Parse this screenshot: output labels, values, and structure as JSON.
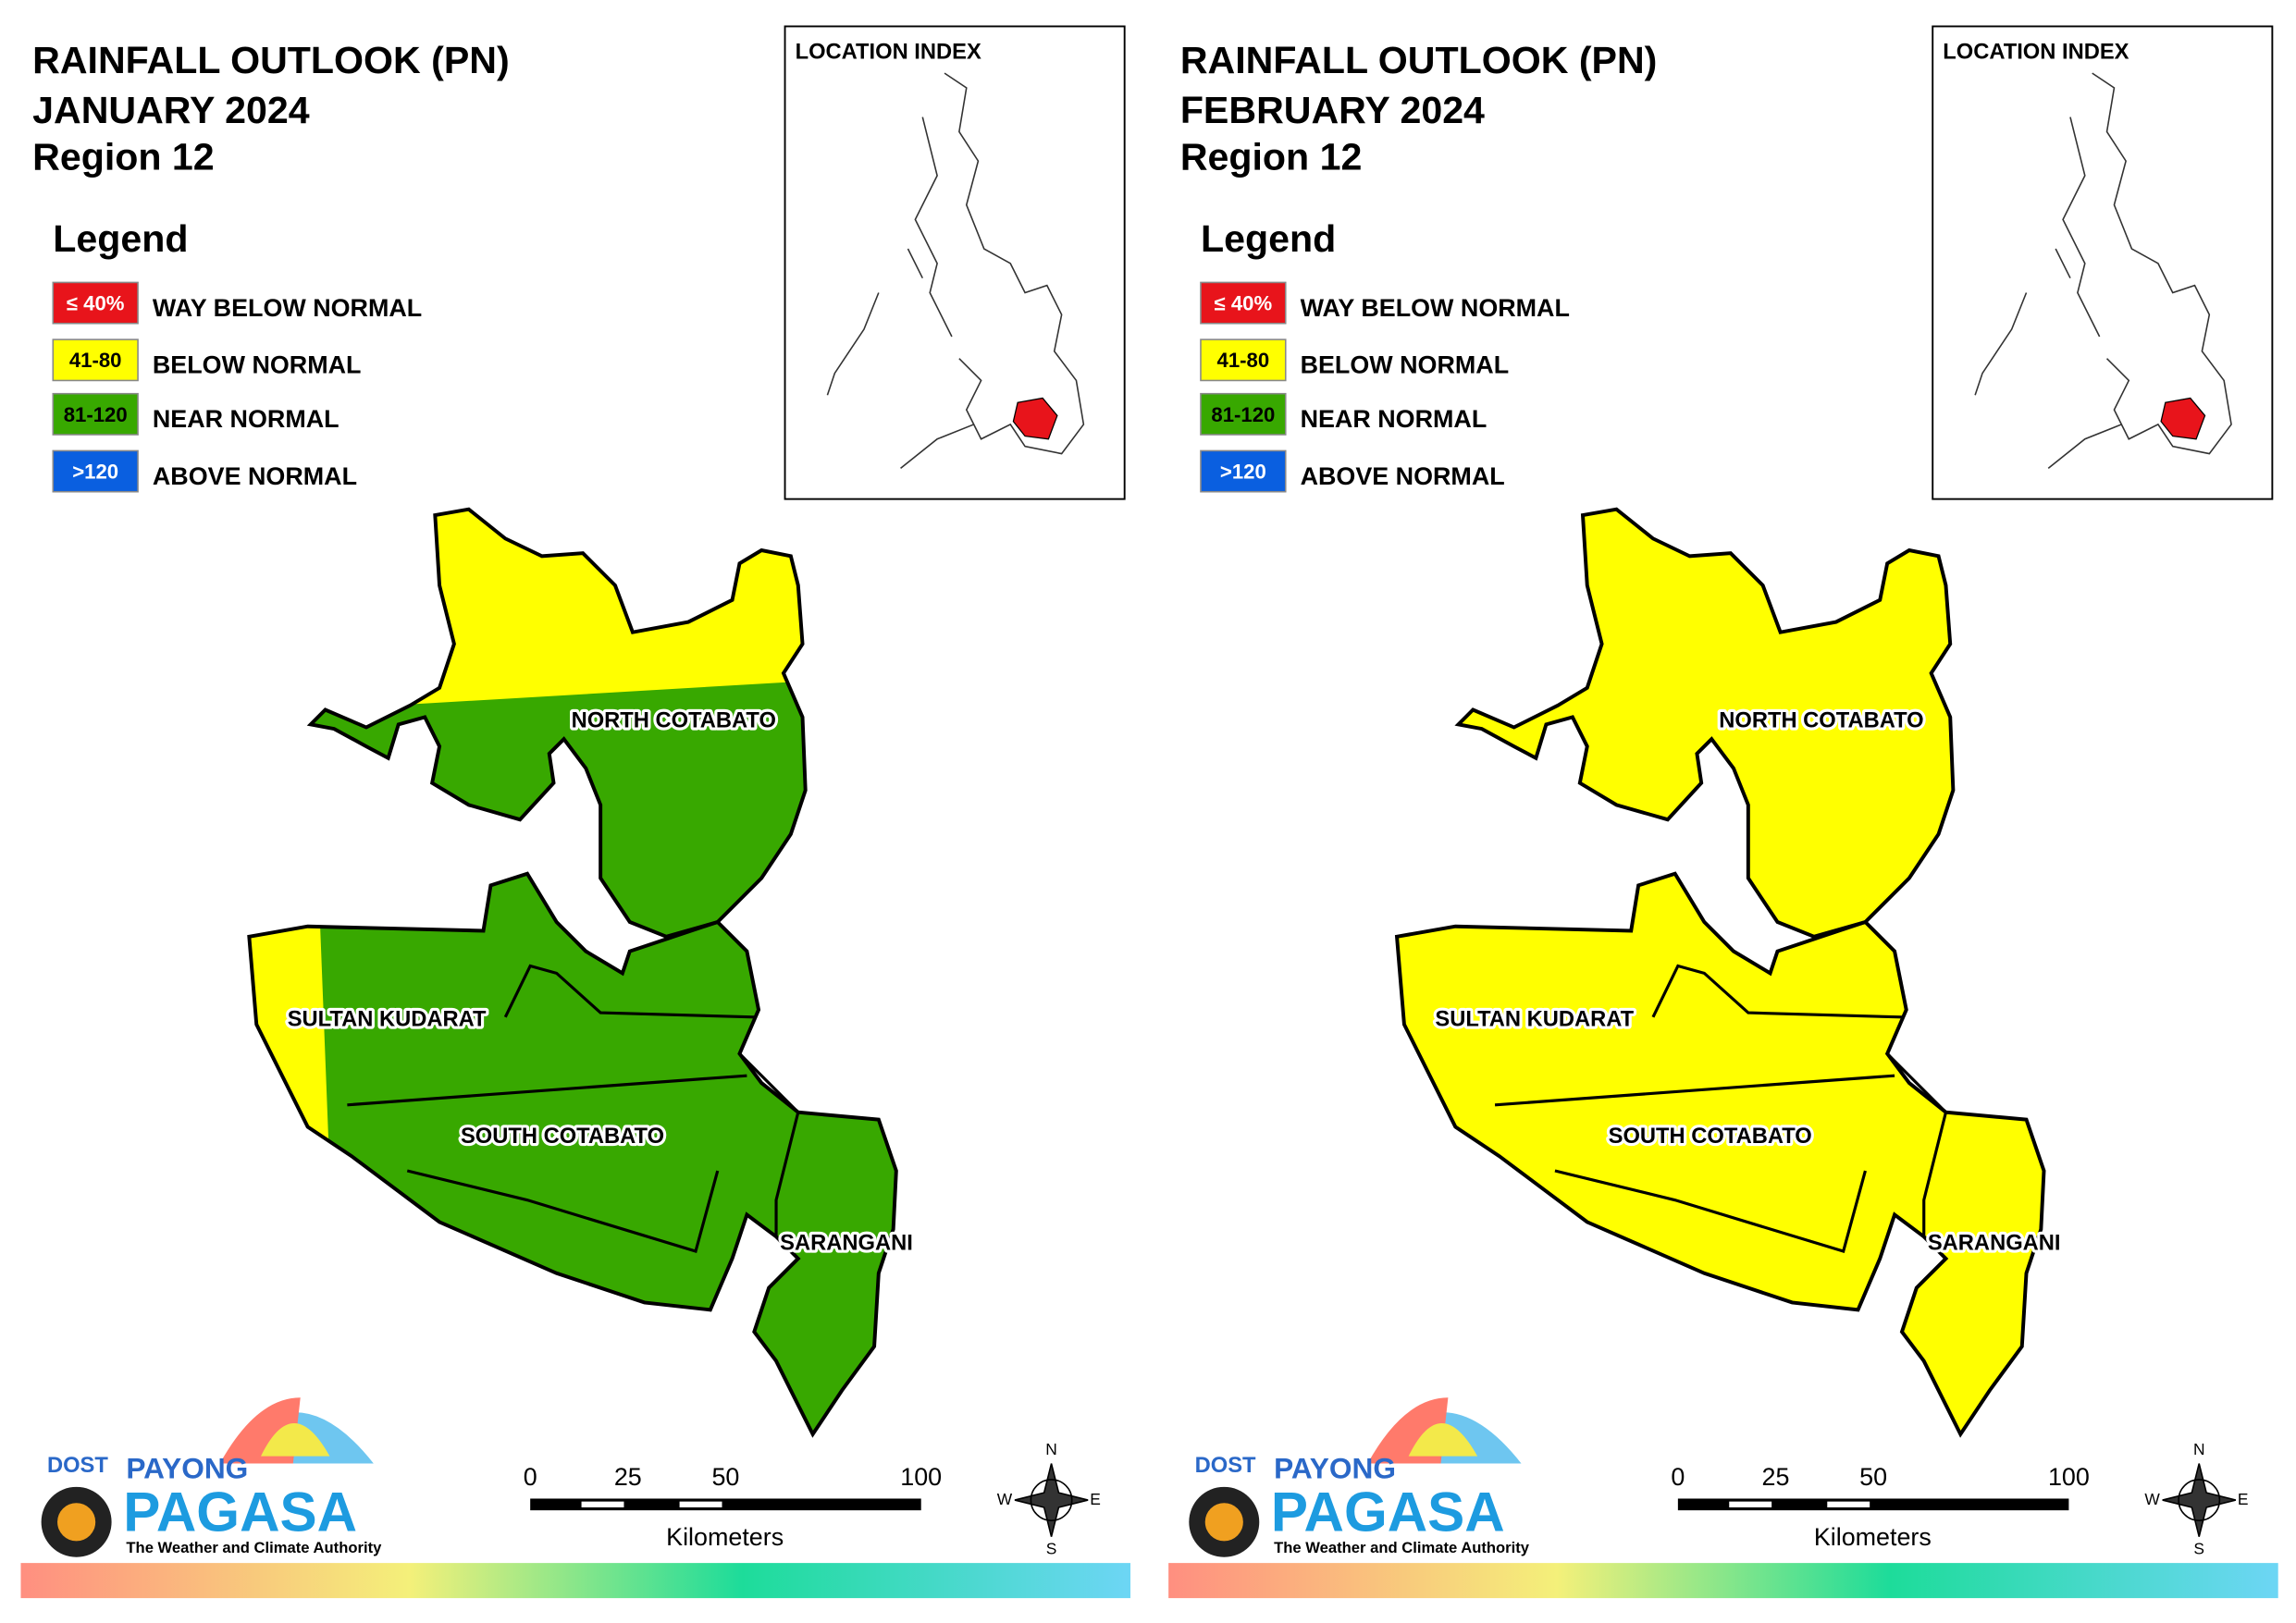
{
  "panels": [
    {
      "title": [
        "RAINFALL OUTLOOK (PN)",
        "JANUARY 2024",
        "Region 12"
      ],
      "legend_title": "Legend",
      "legend": [
        {
          "swatch": "≤ 40%",
          "label": "WAY BELOW NORMAL",
          "color": "#e8141b"
        },
        {
          "swatch": "41-80",
          "label": "BELOW NORMAL",
          "color": "#ffff00"
        },
        {
          "swatch": "81-120",
          "label": "NEAR NORMAL",
          "color": "#38a800"
        },
        {
          "swatch": ">120",
          "label": "ABOVE NORMAL",
          "color": "#0a5fe0"
        }
      ],
      "location_index": "LOCATION INDEX",
      "provinces": [
        "NORTH COTABATO",
        "SULTAN KUDARAT",
        "SOUTH COTABATO",
        "SARANGANI"
      ],
      "scale": {
        "ticks": [
          0,
          25,
          50,
          100
        ],
        "unit": "Kilometers"
      },
      "compass": [
        "N",
        "E",
        "S",
        "W"
      ],
      "logo": {
        "agency": "DOST",
        "name1": "PAYONG",
        "name2": "PAGASA",
        "tagline": "The Weather and Climate Authority"
      }
    },
    {
      "title": [
        "RAINFALL OUTLOOK (PN)",
        "FEBRUARY 2024",
        "Region 12"
      ],
      "legend_title": "Legend",
      "legend": [
        {
          "swatch": "≤ 40%",
          "label": "WAY BELOW NORMAL",
          "color": "#e8141b"
        },
        {
          "swatch": "41-80",
          "label": "BELOW NORMAL",
          "color": "#ffff00"
        },
        {
          "swatch": "81-120",
          "label": "NEAR NORMAL",
          "color": "#38a800"
        },
        {
          "swatch": ">120",
          "label": "ABOVE NORMAL",
          "color": "#0a5fe0"
        }
      ],
      "location_index": "LOCATION INDEX",
      "provinces": [
        "NORTH COTABATO",
        "SULTAN KUDARAT",
        "SOUTH COTABATO",
        "SARANGANI"
      ],
      "scale": {
        "ticks": [
          0,
          25,
          50,
          100
        ],
        "unit": "Kilometers"
      },
      "compass": [
        "N",
        "E",
        "S",
        "W"
      ],
      "logo": {
        "agency": "DOST",
        "name1": "PAYONG",
        "name2": "PAGASA",
        "tagline": "The Weather and Climate Authority"
      }
    }
  ]
}
